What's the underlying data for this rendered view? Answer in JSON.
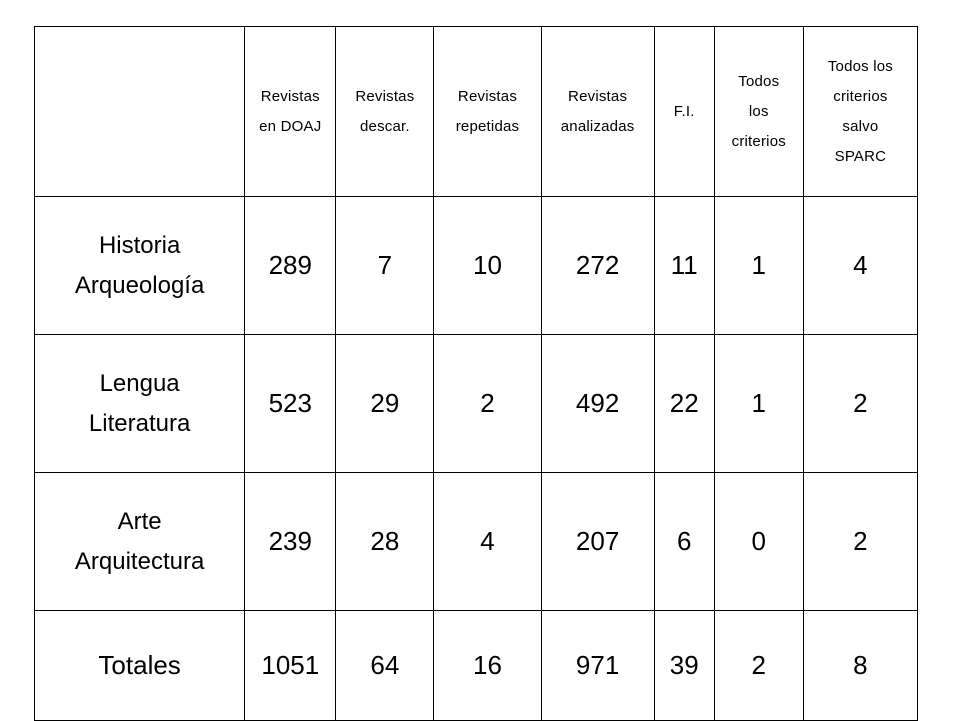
{
  "table": {
    "headers": [
      [
        "Revistas",
        "en DOAJ"
      ],
      [
        "Revistas",
        "descar."
      ],
      [
        "Revistas",
        "repetidas"
      ],
      [
        "Revistas",
        "analizadas"
      ],
      [
        "F.I."
      ],
      [
        "Todos",
        "los",
        "criterios"
      ],
      [
        "Todos los",
        "criterios",
        "salvo",
        "SPARC"
      ]
    ],
    "rows": [
      {
        "label": [
          "Historia",
          "Arqueología"
        ],
        "values": [
          "289",
          "7",
          "10",
          "272",
          "11",
          "1",
          "4"
        ]
      },
      {
        "label": [
          "Lengua",
          "Literatura"
        ],
        "values": [
          "523",
          "29",
          "2",
          "492",
          "22",
          "1",
          "2"
        ]
      },
      {
        "label": [
          "Arte",
          "Arquitectura"
        ],
        "values": [
          "239",
          "28",
          "4",
          "207",
          "6",
          "0",
          "2"
        ]
      }
    ],
    "totals": {
      "label": "Totales",
      "values": [
        "1051",
        "64",
        "16",
        "971",
        "39",
        "2",
        "8"
      ]
    }
  }
}
